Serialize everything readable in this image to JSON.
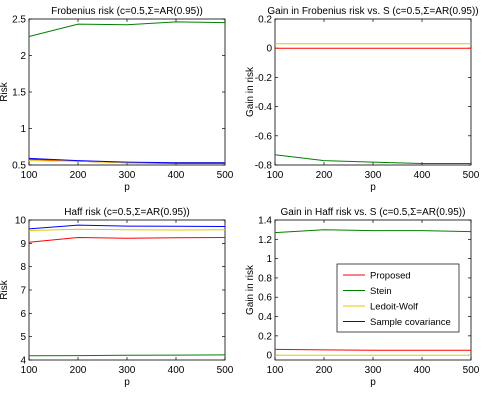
{
  "colors": {
    "Proposed": "#ff0000",
    "Stein": "#008000",
    "Ledoit-Wolf": "#e6c800",
    "Sample covariance": "#0000ff"
  },
  "chart_data": [
    {
      "type": "line",
      "title": "Frobenius risk (c=0.5,Σ=AR(0.95))",
      "xlabel": "p",
      "ylabel": "Risk",
      "xlim": [
        100,
        500
      ],
      "ylim": [
        0.5,
        2.5
      ],
      "xticks": [
        100,
        200,
        300,
        400,
        500
      ],
      "yticks": [
        0.5,
        1,
        1.5,
        2,
        2.5
      ],
      "x": [
        100,
        200,
        300,
        400,
        500
      ],
      "series": [
        {
          "name": "Proposed",
          "values": [
            0.58,
            0.55,
            0.53,
            0.52,
            0.52
          ]
        },
        {
          "name": "Stein",
          "values": [
            2.26,
            2.43,
            2.42,
            2.46,
            2.45
          ]
        },
        {
          "name": "Ledoit-Wolf",
          "values": [
            0.56,
            0.55,
            0.53,
            0.53,
            0.53
          ]
        },
        {
          "name": "Sample covariance",
          "values": [
            0.59,
            0.56,
            0.54,
            0.53,
            0.53
          ]
        }
      ]
    },
    {
      "type": "line",
      "title": "Gain in Frobenius risk vs. S (c=0.5,Σ=AR(0.95))",
      "xlabel": "p",
      "ylabel": "Gain in risk",
      "xlim": [
        100,
        500
      ],
      "ylim": [
        -0.8,
        0.2
      ],
      "xticks": [
        100,
        200,
        300,
        400,
        500
      ],
      "yticks": [
        -0.8,
        -0.6,
        -0.4,
        -0.2,
        0,
        0.2
      ],
      "x": [
        100,
        200,
        300,
        400,
        500
      ],
      "series": [
        {
          "name": "Proposed",
          "values": [
            0.0,
            0.0,
            0.0,
            0.0,
            0.0
          ]
        },
        {
          "name": "Stein",
          "values": [
            -0.73,
            -0.77,
            -0.78,
            -0.79,
            -0.79
          ]
        },
        {
          "name": "Ledoit-Wolf",
          "values": [
            0.03,
            0.03,
            0.03,
            0.03,
            0.03
          ]
        }
      ]
    },
    {
      "type": "line",
      "title": "Haff risk (c=0.5,Σ=AR(0.95))",
      "xlabel": "p",
      "ylabel": "Risk",
      "xlim": [
        100,
        500
      ],
      "ylim": [
        4,
        10
      ],
      "xticks": [
        100,
        200,
        300,
        400,
        500
      ],
      "yticks": [
        4,
        5,
        6,
        7,
        8,
        9,
        10
      ],
      "x": [
        100,
        200,
        300,
        400,
        500
      ],
      "series": [
        {
          "name": "Proposed",
          "values": [
            9.05,
            9.25,
            9.22,
            9.24,
            9.25
          ]
        },
        {
          "name": "Stein",
          "values": [
            4.18,
            4.19,
            4.2,
            4.21,
            4.22
          ]
        },
        {
          "name": "Ledoit-Wolf",
          "values": [
            9.55,
            9.6,
            9.58,
            9.57,
            9.58
          ]
        },
        {
          "name": "Sample covariance",
          "values": [
            9.62,
            9.78,
            9.74,
            9.73,
            9.72
          ]
        }
      ]
    },
    {
      "type": "line",
      "title": "Gain in Haff risk vs. S (c=0.5,Σ=AR(0.95))",
      "xlabel": "p",
      "ylabel": "Gain in risk",
      "xlim": [
        100,
        500
      ],
      "ylim": [
        -0.05,
        1.4
      ],
      "xticks": [
        100,
        200,
        300,
        400,
        500
      ],
      "yticks": [
        0,
        0.2,
        0.4,
        0.6,
        0.8,
        1,
        1.2,
        1.4
      ],
      "x": [
        100,
        200,
        300,
        400,
        500
      ],
      "series": [
        {
          "name": "Proposed",
          "values": [
            0.06,
            0.055,
            0.052,
            0.05,
            0.05
          ]
        },
        {
          "name": "Stein",
          "values": [
            1.27,
            1.3,
            1.29,
            1.29,
            1.28
          ]
        },
        {
          "name": "Ledoit-Wolf",
          "values": [
            0.0,
            0.0,
            0.0,
            0.0,
            0.0
          ]
        }
      ],
      "legend": {
        "placement": "center-right",
        "entries": [
          "Proposed",
          "Stein",
          "Ledoit-Wolf",
          "Sample covariance"
        ]
      }
    }
  ]
}
